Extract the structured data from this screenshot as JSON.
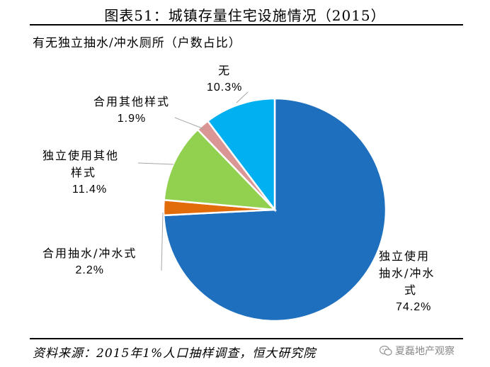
{
  "page": {
    "title": "图表51：城镇存量住宅设施情况（2015）",
    "subtitle": "有无独立抽水/冲水厕所（户数占比）",
    "source": "资料来源：2015年1%人口抽样调查，恒大研究院",
    "watermark": "夏磊地产观察"
  },
  "chart_data": {
    "type": "pie",
    "title": "有无独立抽水/冲水厕所（户数占比）",
    "start_angle_deg": 0,
    "direction": "clockwise",
    "slices": [
      {
        "label_lines": [
          "独立使用",
          "抽水/冲水",
          "式"
        ],
        "label": "独立使用抽水/冲水式",
        "value": 74.2,
        "value_text": "74.2%",
        "color": "#1f6fbf"
      },
      {
        "label_lines": [
          "合用抽水/冲水式"
        ],
        "label": "合用抽水/冲水式",
        "value": 2.2,
        "value_text": "2.2%",
        "color": "#e36c0a"
      },
      {
        "label_lines": [
          "独立使用其他",
          "样式"
        ],
        "label": "独立使用其他样式",
        "value": 11.4,
        "value_text": "11.4%",
        "color": "#92d050"
      },
      {
        "label_lines": [
          "合用其他样式"
        ],
        "label": "合用其他样式",
        "value": 1.9,
        "value_text": "1.9%",
        "color": "#d99694"
      },
      {
        "label_lines": [
          "无"
        ],
        "label": "无",
        "value": 10.3,
        "value_text": "10.3%",
        "color": "#00b0f0"
      }
    ]
  }
}
